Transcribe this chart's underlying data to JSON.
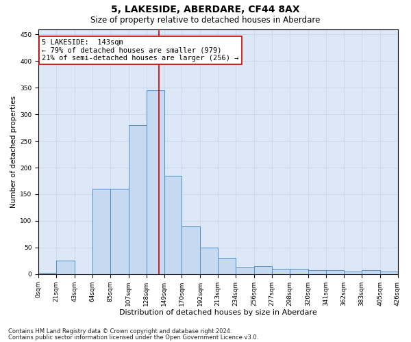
{
  "title1": "5, LAKESIDE, ABERDARE, CF44 8AX",
  "title2": "Size of property relative to detached houses in Aberdare",
  "xlabel": "Distribution of detached houses by size in Aberdare",
  "ylabel": "Number of detached properties",
  "footnote1": "Contains HM Land Registry data © Crown copyright and database right 2024.",
  "footnote2": "Contains public sector information licensed under the Open Government Licence v3.0.",
  "annotation_line1": "5 LAKESIDE:  143sqm",
  "annotation_line2": "← 79% of detached houses are smaller (979)",
  "annotation_line3": "21% of semi-detached houses are larger (256) →",
  "bin_edges": [
    0,
    21,
    43,
    64,
    85,
    107,
    128,
    149,
    170,
    192,
    213,
    234,
    256,
    277,
    298,
    320,
    341,
    362,
    383,
    405,
    426
  ],
  "bin_labels": [
    "0sqm",
    "21sqm",
    "43sqm",
    "64sqm",
    "85sqm",
    "107sqm",
    "128sqm",
    "149sqm",
    "170sqm",
    "192sqm",
    "213sqm",
    "234sqm",
    "256sqm",
    "277sqm",
    "298sqm",
    "320sqm",
    "341sqm",
    "362sqm",
    "383sqm",
    "405sqm",
    "426sqm"
  ],
  "counts": [
    2,
    25,
    0,
    160,
    160,
    280,
    345,
    185,
    90,
    50,
    30,
    12,
    15,
    10,
    10,
    8,
    8,
    5,
    8,
    5,
    0
  ],
  "bar_color": "#c5d9f0",
  "bar_edge_color": "#4d8cc8",
  "vline_color": "#cc0000",
  "vline_x": 143,
  "ylim": [
    0,
    460
  ],
  "yticks": [
    0,
    50,
    100,
    150,
    200,
    250,
    300,
    350,
    400,
    450
  ],
  "grid_color": "#c8d4e8",
  "background_color": "#dce8f5",
  "box_color": "#cc0000",
  "title1_fontsize": 10,
  "title2_fontsize": 8.5,
  "ylabel_fontsize": 7.5,
  "xlabel_fontsize": 8,
  "tick_fontsize": 6.5,
  "annotation_fontsize": 7.5,
  "footnote_fontsize": 6
}
